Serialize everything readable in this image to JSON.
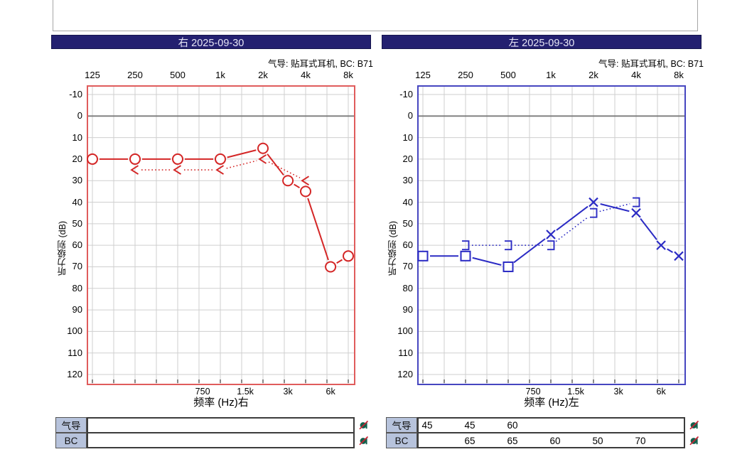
{
  "top_panel": {
    "note_box": ""
  },
  "axis": {
    "top_ticks": [
      {
        "label": "125",
        "freq": 125
      },
      {
        "label": "250",
        "freq": 250
      },
      {
        "label": "500",
        "freq": 500
      },
      {
        "label": "1k",
        "freq": 1000
      },
      {
        "label": "2k",
        "freq": 2000
      },
      {
        "label": "4k",
        "freq": 4000
      },
      {
        "label": "8k",
        "freq": 8000
      }
    ],
    "bottom_ticks": [
      {
        "label": "750",
        "freq": 750
      },
      {
        "label": "1.5k",
        "freq": 1500
      },
      {
        "label": "3k",
        "freq": 3000
      },
      {
        "label": "6k",
        "freq": 6000
      }
    ],
    "y_ticks": [
      -10,
      0,
      10,
      20,
      30,
      40,
      50,
      60,
      70,
      80,
      90,
      100,
      110,
      120
    ],
    "table_column_freqs": [
      125,
      250,
      500,
      1000,
      2000,
      4000,
      8000
    ]
  },
  "colors": {
    "titlebar_bg": "#232070",
    "titlebar_text": "#e6e6f5",
    "right_line": "#d42626",
    "right_border": "#e05c5c",
    "left_line": "#2b2bc4",
    "left_border": "#4646c0",
    "grid": "#cfcfcf",
    "zero_line": "#7a7a7a",
    "table_header_bg": "#b7c3dc",
    "icon_body": "#14604c",
    "icon_slash": "#cc2233"
  },
  "chart_data": [
    {
      "type": "line",
      "ear": "right",
      "title": "右 2025-09-30",
      "subtitle": "气导: 贴耳式耳机, BC: B71",
      "xlabel": "频率 (Hz)右",
      "ylabel": "听力级别 (dB)",
      "xlim": [
        125,
        8000
      ],
      "ylim": [
        -10,
        120
      ],
      "y_inverted": true,
      "grid": true,
      "color": "#d42626",
      "border_color": "#e05c5c",
      "series": [
        {
          "name": "air-conduction",
          "style": "solid",
          "x": [
            125,
            250,
            500,
            1000,
            2000,
            3000,
            4000,
            6000,
            8000
          ],
          "y": [
            20,
            20,
            20,
            20,
            15,
            30,
            35,
            70,
            65
          ],
          "markers": [
            "circle",
            "circle",
            "circle",
            "circle",
            "circle",
            "circle",
            "circle",
            "circle",
            "circle"
          ]
        },
        {
          "name": "bone-conduction",
          "style": "dotted",
          "x": [
            250,
            500,
            1000,
            2000,
            4000
          ],
          "y": [
            25,
            25,
            25,
            20,
            30
          ],
          "markers": [
            "lt",
            "lt",
            "lt",
            "lt",
            "lt"
          ]
        }
      ],
      "table": {
        "rows": [
          {
            "label": "气导",
            "values": [
              "",
              "",
              "",
              "",
              "",
              "",
              ""
            ]
          },
          {
            "label": "BC",
            "values": [
              "",
              "",
              "",
              "",
              "",
              "",
              ""
            ]
          }
        ]
      }
    },
    {
      "type": "line",
      "ear": "left",
      "title": "左 2025-09-30",
      "subtitle": "气导: 贴耳式耳机, BC: B71",
      "xlabel": "频率 (Hz)左",
      "ylabel": "听力级别 (dB)",
      "xlim": [
        125,
        8000
      ],
      "ylim": [
        -10,
        120
      ],
      "y_inverted": true,
      "grid": true,
      "color": "#2b2bc4",
      "border_color": "#4646c0",
      "series": [
        {
          "name": "air-conduction",
          "style": "solid",
          "x": [
            125,
            250,
            500,
            1000,
            2000,
            4000,
            6000,
            8000
          ],
          "y": [
            65,
            65,
            70,
            55,
            40,
            45,
            60,
            65
          ],
          "markers": [
            "square",
            "square",
            "square",
            "x",
            "x",
            "x",
            "x",
            "x"
          ]
        },
        {
          "name": "bone-conduction",
          "style": "dotted",
          "x": [
            250,
            500,
            1000,
            2000,
            4000
          ],
          "y": [
            60,
            60,
            60,
            45,
            40
          ],
          "markers": [
            "rbracket",
            "rbracket",
            "rbracket",
            "rbracket",
            "rbracket"
          ]
        }
      ],
      "table": {
        "rows": [
          {
            "label": "气导",
            "values": [
              "45",
              "45",
              "60",
              "",
              "",
              "",
              ""
            ]
          },
          {
            "label": "BC",
            "values": [
              "",
              "65",
              "65",
              "60",
              "50",
              "70",
              ""
            ]
          }
        ]
      }
    }
  ]
}
